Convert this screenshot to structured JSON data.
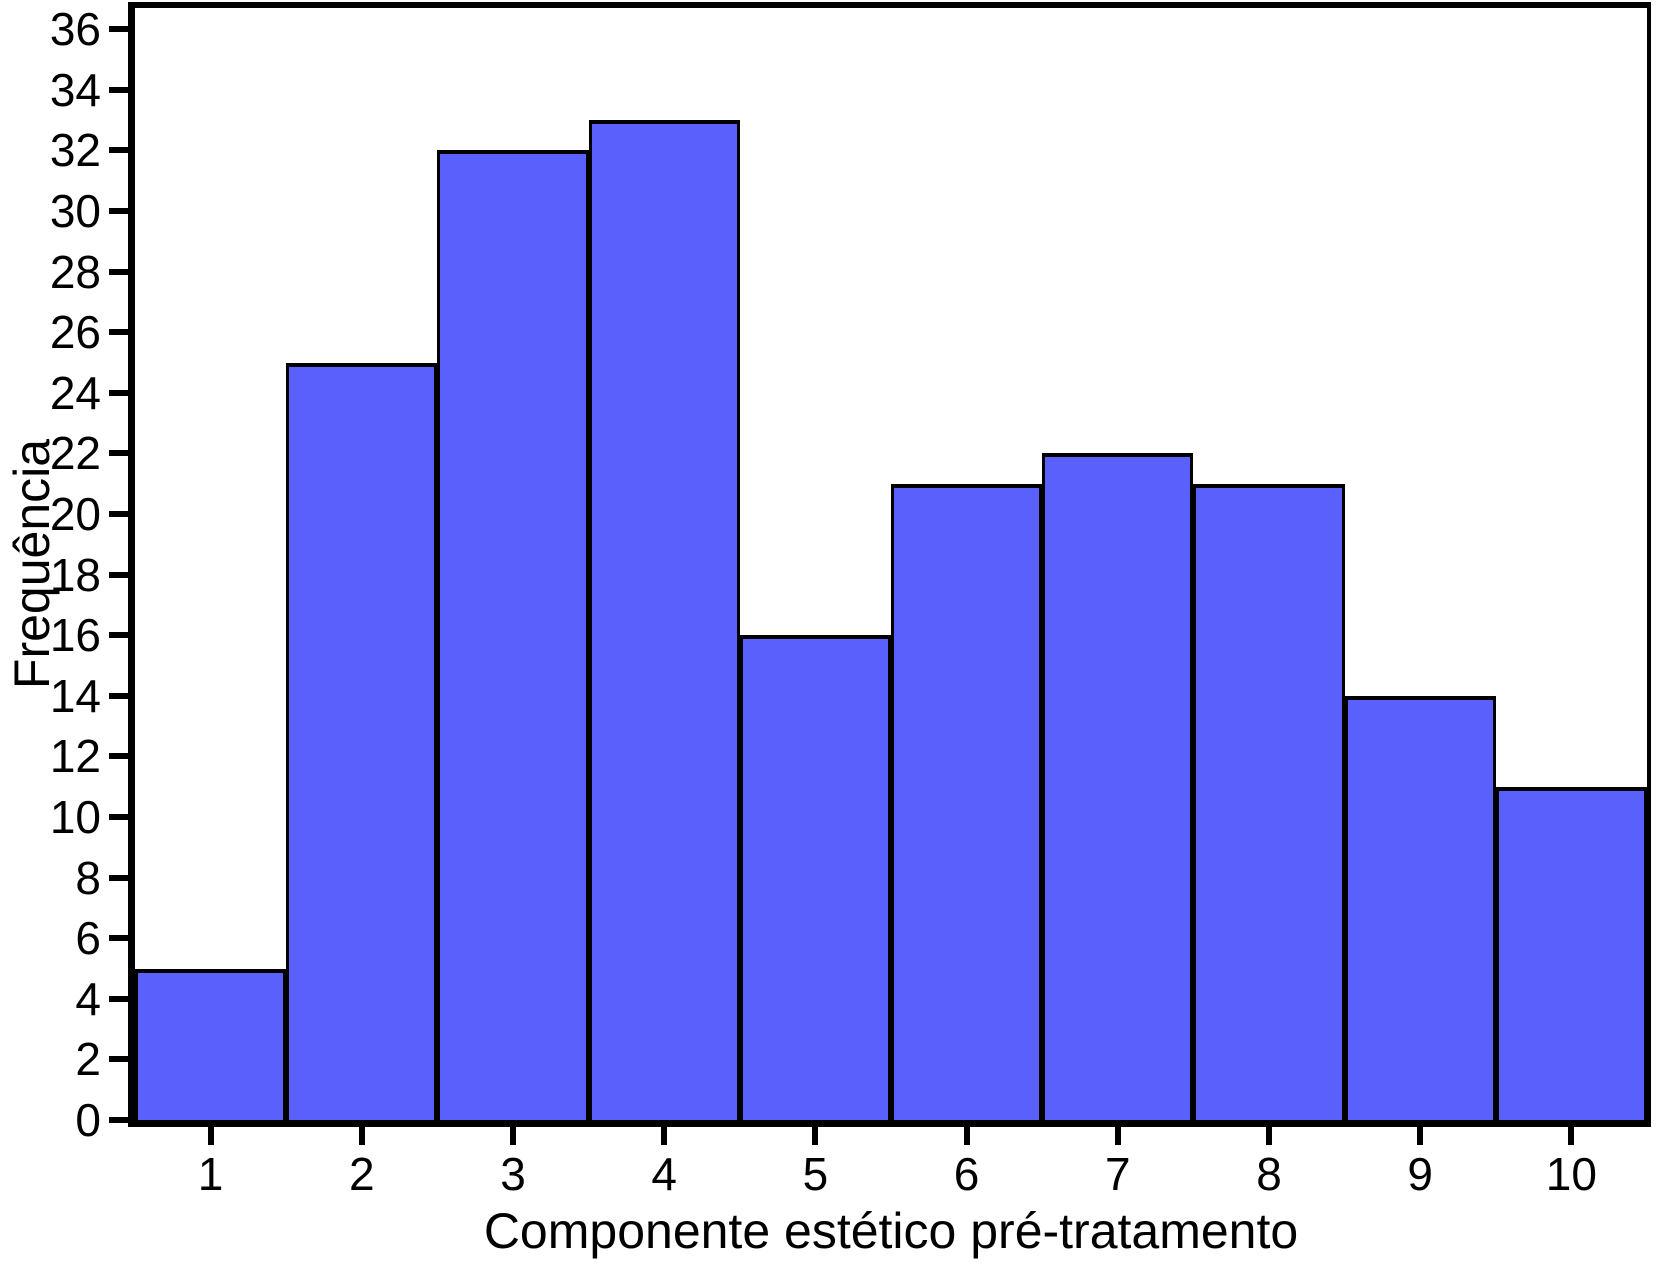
{
  "chart_data": {
    "type": "bar",
    "subtype": "histogram",
    "categories": [
      "1",
      "2",
      "3",
      "4",
      "5",
      "6",
      "7",
      "8",
      "9",
      "10"
    ],
    "values": [
      5,
      25,
      32,
      33,
      16,
      21,
      22,
      21,
      14,
      11
    ],
    "xlabel": "Componente estético pré-tratamento",
    "ylabel": "Frequência",
    "ylim": [
      0,
      36
    ],
    "ytick_step": 2,
    "xticks": [
      "1",
      "2",
      "3",
      "4",
      "5",
      "6",
      "7",
      "8",
      "9",
      "10"
    ],
    "grid": false,
    "legend": false,
    "bar_fill_color": "#5A60FC",
    "bar_edge_color": "#000000",
    "axis_color": "#000000",
    "background_color": "#FFFFFF"
  }
}
